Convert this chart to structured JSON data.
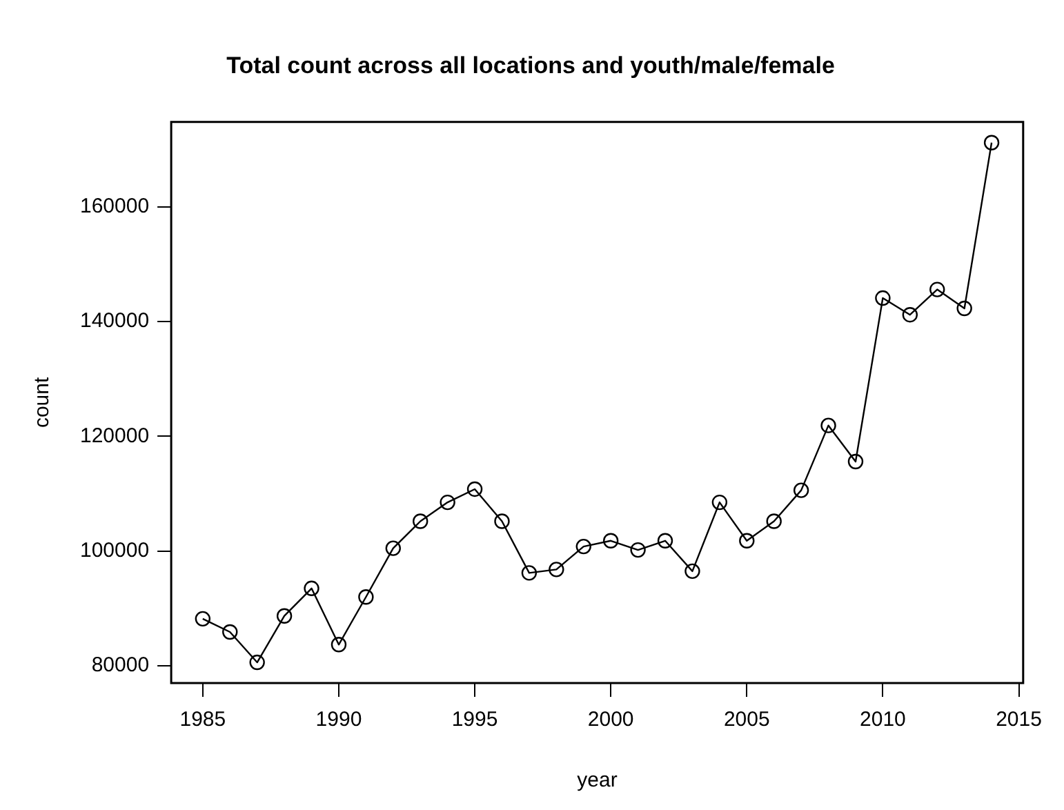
{
  "chart_data": {
    "type": "line",
    "title": "Total count across all locations and youth/male/female",
    "xlabel": "year",
    "ylabel": "count",
    "x": [
      1985,
      1986,
      1987,
      1988,
      1989,
      1990,
      1991,
      1992,
      1993,
      1994,
      1995,
      1996,
      1997,
      1998,
      1999,
      2000,
      2001,
      2002,
      2003,
      2004,
      2005,
      2006,
      2007,
      2008,
      2009,
      2010,
      2011,
      2012,
      2013,
      2014
    ],
    "series": [
      {
        "color": "#000000",
        "values": [
          88200,
          85900,
          80600,
          88700,
          93500,
          83700,
          92000,
          100500,
          105200,
          108500,
          110800,
          105200,
          96200,
          96800,
          100800,
          101800,
          100200,
          101800,
          96500,
          108500,
          101800,
          105200,
          110600,
          121900,
          115600,
          144100,
          141200,
          145600,
          142300,
          171200
        ]
      }
    ],
    "xlim": [
      1983.84,
      2015.16
    ],
    "ylim": [
      77000,
      174800
    ],
    "xticks": [
      1985,
      1990,
      1995,
      2000,
      2005,
      2010,
      2015
    ],
    "yticks": [
      80000,
      100000,
      120000,
      140000,
      160000
    ],
    "marker": "circle",
    "line_style": "solid"
  }
}
